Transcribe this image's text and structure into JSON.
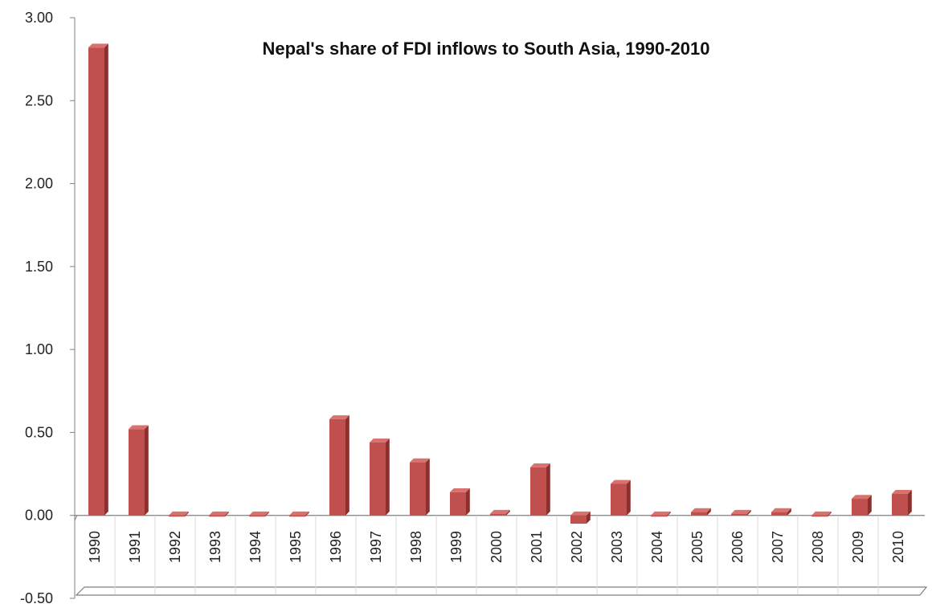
{
  "chart_data": {
    "type": "bar",
    "title": "Nepal's share of FDI inflows to South Asia, 1990-2010",
    "xlabel": "",
    "ylabel": "",
    "ylim": [
      -0.5,
      3.0
    ],
    "yticks": [
      "3.00",
      "2.50",
      "2.00",
      "1.50",
      "1.00",
      "0.50",
      "0.00",
      "-0.50"
    ],
    "ytick_values": [
      3.0,
      2.5,
      2.0,
      1.5,
      1.0,
      0.5,
      0.0,
      -0.5
    ],
    "categories": [
      "1990",
      "1991",
      "1992",
      "1993",
      "1994",
      "1995",
      "1996",
      "1997",
      "1998",
      "1999",
      "2000",
      "2001",
      "2002",
      "2003",
      "2004",
      "2005",
      "2006",
      "2007",
      "2008",
      "2009",
      "2010"
    ],
    "values": [
      2.82,
      0.52,
      0.0,
      0.0,
      0.0,
      0.0,
      0.58,
      0.44,
      0.32,
      0.14,
      0.01,
      0.29,
      -0.05,
      0.19,
      0.0,
      0.02,
      0.01,
      0.02,
      0.0,
      0.1,
      0.13
    ],
    "grid": false,
    "legend": false,
    "colors": {
      "bar_front": "#c0504d",
      "bar_side": "#8c2f2d",
      "bar_top": "#d9716e",
      "axis": "#7f7f7f"
    }
  }
}
